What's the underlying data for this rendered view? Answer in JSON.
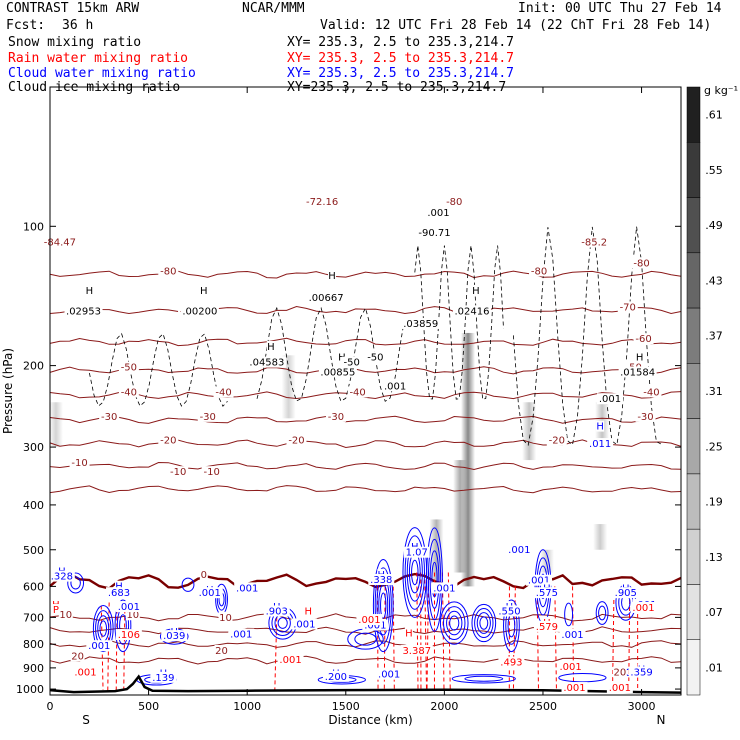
{
  "header": {
    "model": "CONTRAST 15km ARW",
    "org": "NCAR/MMM",
    "init": "Init: 00 UTC Thu 27 Feb 14",
    "fcst_label": "Fcst:",
    "fcst_value": "36 h",
    "valid": "Valid: 12 UTC Fri 28 Feb 14 (22 ChT Fri 28 Feb 14)"
  },
  "colors": {
    "temperature": "#8b1a1a",
    "freezing": "#7a0000",
    "rain": "#ff0000",
    "cloud_water": "#0000ff",
    "cloud_ice": "#000000",
    "snow_shading": "#555555"
  },
  "legend": [
    {
      "label": "Snow mixing ratio",
      "xy": "XY= 235.3,  2.5 to 235.3,214.7",
      "color": "#000000"
    },
    {
      "label": "Rain water mixing ratio",
      "xy": "XY= 235.3,  2.5 to 235.3,214.7",
      "color": "#ff0000"
    },
    {
      "label": "Cloud water mixing ratio",
      "xy": "XY= 235.3,  2.5 to 235.3,214.7",
      "color": "#0000ff"
    },
    {
      "label": "Cloud ice mixing ratio",
      "xy": "XY=235.3,  2.5 to 235.3,214.7",
      "color": "#000000"
    }
  ],
  "colorbar": {
    "unit": "g kg⁻¹",
    "labels": [
      ".61",
      ".55",
      ".49",
      ".43",
      ".37",
      ".31",
      ".25",
      ".19",
      ".13",
      ".07",
      ".01"
    ],
    "shades": [
      "#202020",
      "#3a3a3a",
      "#505050",
      "#666666",
      "#7c7c7c",
      "#929292",
      "#a8a8a8",
      "#bcbcbc",
      "#d0d0d0",
      "#e2e2e2",
      "#f2f2f2"
    ]
  },
  "chart_data": {
    "type": "cross-section",
    "xlabel": "Distance (km)",
    "ylabel": "Pressure (hPa)",
    "x_ticks": [
      0,
      500,
      1000,
      1500,
      2000,
      2500,
      3000
    ],
    "y_ticks": [
      100,
      200,
      300,
      400,
      500,
      600,
      700,
      800,
      900,
      1000
    ],
    "xlim": [
      0,
      3200
    ],
    "ylim": [
      1030,
      50
    ],
    "left_end": "S",
    "right_end": "N",
    "temperature_isotherms": [
      {
        "label": "-80",
        "p": 127
      },
      {
        "label": "-70",
        "p": 152
      },
      {
        "label": "-60",
        "p": 178
      },
      {
        "label": "-50",
        "p": 205
      },
      {
        "label": "-40",
        "p": 232
      },
      {
        "label": "-30",
        "p": 262
      },
      {
        "label": "-20",
        "p": 295
      },
      {
        "label": "-10",
        "p": 330
      },
      {
        "label": "-10",
        "p": 370
      },
      {
        "label": "0",
        "p": 585
      },
      {
        "label": "10",
        "p": 700
      },
      {
        "label": "10",
        "p": 748
      },
      {
        "label": "20",
        "p": 800
      },
      {
        "label": "20",
        "p": 866
      }
    ],
    "isotherm_labels": [
      {
        "text": "-84.47",
        "x": 50,
        "p": 110
      },
      {
        "text": "-80",
        "x": 600,
        "p": 127
      },
      {
        "text": "-72.16",
        "x": 1380,
        "p": 90
      },
      {
        "text": "-80",
        "x": 2050,
        "p": 90
      },
      {
        "text": "-85.2",
        "x": 2760,
        "p": 110
      },
      {
        "text": "-80",
        "x": 2480,
        "p": 127
      },
      {
        "text": "-80",
        "x": 3000,
        "p": 122
      },
      {
        "text": "-70",
        "x": 700,
        "p": 155
      },
      {
        "text": "-70",
        "x": 2930,
        "p": 152
      },
      {
        "text": "-60",
        "x": 3010,
        "p": 178
      },
      {
        "text": "-50",
        "x": 400,
        "p": 205
      },
      {
        "text": "-50",
        "x": 2960,
        "p": 205
      },
      {
        "text": "-40",
        "x": 400,
        "p": 232
      },
      {
        "text": "-40",
        "x": 880,
        "p": 232
      },
      {
        "text": "-40",
        "x": 1560,
        "p": 232
      },
      {
        "text": "-40",
        "x": 3050,
        "p": 232
      },
      {
        "text": "-30",
        "x": 300,
        "p": 262
      },
      {
        "text": "-30",
        "x": 800,
        "p": 262
      },
      {
        "text": "-30",
        "x": 1450,
        "p": 262
      },
      {
        "text": "-30",
        "x": 3020,
        "p": 262
      },
      {
        "text": "-20",
        "x": 600,
        "p": 295
      },
      {
        "text": "-20",
        "x": 1250,
        "p": 295
      },
      {
        "text": "-20",
        "x": 2570,
        "p": 295
      },
      {
        "text": "-10",
        "x": 150,
        "p": 330
      },
      {
        "text": "-10",
        "x": 650,
        "p": 345
      },
      {
        "text": "-10",
        "x": 820,
        "p": 345
      },
      {
        "text": "0",
        "x": 780,
        "p": 575
      },
      {
        "text": "10",
        "x": 80,
        "p": 703
      },
      {
        "text": "10",
        "x": 420,
        "p": 703
      },
      {
        "text": "10",
        "x": 890,
        "p": 712
      },
      {
        "text": "20",
        "x": 140,
        "p": 863
      },
      {
        "text": "20",
        "x": 870,
        "p": 840
      },
      {
        "text": "20",
        "x": 2890,
        "p": 935
      },
      {
        "text": "0",
        "x": 1650,
        "p": 590
      }
    ],
    "ice_labels": [
      {
        "text": "H",
        "x": 200,
        "p": 140
      },
      {
        "text": ".02953",
        "x": 170,
        "p": 155
      },
      {
        "text": "H",
        "x": 780,
        "p": 140
      },
      {
        "text": ".00200",
        "x": 760,
        "p": 155
      },
      {
        "text": "H",
        "x": 1430,
        "p": 130
      },
      {
        "text": ".00667",
        "x": 1400,
        "p": 145
      },
      {
        "text": "H",
        "x": 1920,
        "p": 165
      },
      {
        "text": ".03859",
        "x": 1880,
        "p": 165
      },
      {
        "text": "H",
        "x": 2160,
        "p": 140
      },
      {
        "text": ".02416",
        "x": 2140,
        "p": 155
      },
      {
        "text": "H",
        "x": 1120,
        "p": 185
      },
      {
        "text": ".04583",
        "x": 1100,
        "p": 200
      },
      {
        "text": "H",
        "x": 1480,
        "p": 195
      },
      {
        "text": ".00855",
        "x": 1460,
        "p": 210
      },
      {
        "text": "H",
        "x": 2990,
        "p": 195
      },
      {
        "text": ".01584",
        "x": 2980,
        "p": 210
      },
      {
        "text": ".001",
        "x": 1750,
        "p": 225
      },
      {
        "text": ".001",
        "x": 2840,
        "p": 240
      },
      {
        "text": ".001",
        "x": 1970,
        "p": 95
      },
      {
        "text": "-90.71",
        "x": 1950,
        "p": 105
      },
      {
        "text": "-50",
        "x": 1530,
        "p": 200
      },
      {
        "text": "-50",
        "x": 1650,
        "p": 195
      }
    ],
    "cloud_water_labels": [
      {
        "text": "H",
        "x": 60,
        "p": 565
      },
      {
        "text": ".328",
        "x": 60,
        "p": 580
      },
      {
        "text": "H",
        "x": 350,
        "p": 610
      },
      {
        "text": ".683",
        "x": 350,
        "p": 630
      },
      {
        "text": "H",
        "x": 810,
        "p": 620
      },
      {
        "text": ".001",
        "x": 810,
        "p": 630
      },
      {
        "text": ".001",
        "x": 1000,
        "p": 615
      },
      {
        "text": ".001",
        "x": 400,
        "p": 675
      },
      {
        "text": "H",
        "x": 1680,
        "p": 575
      },
      {
        "text": ".338",
        "x": 1680,
        "p": 590
      },
      {
        "text": "H",
        "x": 1850,
        "p": 500
      },
      {
        "text": "1.07",
        "x": 1860,
        "p": 515
      },
      {
        "text": ".001",
        "x": 2380,
        "p": 508
      },
      {
        "text": ".001",
        "x": 2000,
        "p": 615
      },
      {
        "text": ".001",
        "x": 2480,
        "p": 592
      },
      {
        "text": "H",
        "x": 2520,
        "p": 615
      },
      {
        "text": ".575",
        "x": 2520,
        "p": 630
      },
      {
        "text": "H",
        "x": 2920,
        "p": 615
      },
      {
        "text": ".905",
        "x": 2920,
        "p": 630
      },
      {
        "text": ".001",
        "x": 3020,
        "p": 668
      },
      {
        "text": "H",
        "x": 1150,
        "p": 675
      },
      {
        "text": ".903",
        "x": 1150,
        "p": 690
      },
      {
        "text": ".001",
        "x": 1290,
        "p": 736
      },
      {
        "text": "H",
        "x": 2330,
        "p": 675
      },
      {
        "text": ".550",
        "x": 2330,
        "p": 690
      },
      {
        "text": ".001",
        "x": 1650,
        "p": 740
      },
      {
        "text": ".001",
        "x": 970,
        "p": 774
      },
      {
        "text": ".001",
        "x": 2650,
        "p": 775
      },
      {
        "text": "H",
        "x": 630,
        "p": 764
      },
      {
        "text": ".039",
        "x": 630,
        "p": 780
      },
      {
        "text": ".001",
        "x": 250,
        "p": 820
      },
      {
        "text": "H",
        "x": 575,
        "p": 940
      },
      {
        "text": ".139",
        "x": 575,
        "p": 960
      },
      {
        "text": "H",
        "x": 1450,
        "p": 940
      },
      {
        "text": ".200",
        "x": 1450,
        "p": 955
      },
      {
        "text": ".001",
        "x": 1720,
        "p": 945
      },
      {
        "text": "H",
        "x": 3000,
        "p": 920
      },
      {
        "text": ".359",
        "x": 3000,
        "p": 935
      },
      {
        "text": "H",
        "x": 2790,
        "p": 275
      },
      {
        "text": ".011",
        "x": 2790,
        "p": 300
      }
    ],
    "rain_labels": [
      {
        "text": "H",
        "x": 30,
        "p": 668
      },
      {
        "text": "P",
        "x": 30,
        "p": 685
      },
      {
        "text": ".106",
        "x": 400,
        "p": 776
      },
      {
        "text": ".001",
        "x": 180,
        "p": 935
      },
      {
        "text": ".001",
        "x": 1220,
        "p": 878
      },
      {
        "text": "H",
        "x": 1310,
        "p": 690
      },
      {
        "text": ".001",
        "x": 1620,
        "p": 720
      },
      {
        "text": "H",
        "x": 1820,
        "p": 770
      },
      {
        "text": "3.387",
        "x": 1860,
        "p": 840
      },
      {
        "text": "H",
        "x": 2340,
        "p": 875
      },
      {
        "text": ".493",
        "x": 2340,
        "p": 890
      },
      {
        "text": ".001",
        "x": 2640,
        "p": 910
      },
      {
        "text": "H",
        "x": 2520,
        "p": 730
      },
      {
        "text": ".579",
        "x": 2520,
        "p": 745
      },
      {
        "text": ".001",
        "x": 2660,
        "p": 1010
      },
      {
        "text": ".001",
        "x": 2890,
        "p": 1010
      },
      {
        "text": ".001",
        "x": 3010,
        "p": 678
      }
    ],
    "terrain": [
      [
        0,
        1005
      ],
      [
        60,
        1010
      ],
      [
        120,
        1015
      ],
      [
        250,
        1012
      ],
      [
        330,
        1010
      ],
      [
        390,
        1000
      ],
      [
        420,
        975
      ],
      [
        450,
        940
      ],
      [
        480,
        990
      ],
      [
        520,
        1008
      ],
      [
        700,
        1010
      ],
      [
        1000,
        1008
      ],
      [
        1500,
        1005
      ],
      [
        2000,
        1003
      ],
      [
        2500,
        1006
      ],
      [
        3000,
        1015
      ],
      [
        3200,
        1018
      ]
    ],
    "snow_columns": [
      {
        "x": 2120,
        "p_top": 170,
        "p_bottom": 600,
        "shade": 0.7
      },
      {
        "x": 2080,
        "p_top": 320,
        "p_bottom": 560,
        "shade": 0.5
      },
      {
        "x": 1960,
        "p_top": 430,
        "p_bottom": 600,
        "shade": 0.45
      },
      {
        "x": 2430,
        "p_top": 240,
        "p_bottom": 320,
        "shade": 0.35
      },
      {
        "x": 2800,
        "p_top": 240,
        "p_bottom": 300,
        "shade": 0.35
      },
      {
        "x": 1210,
        "p_top": 190,
        "p_bottom": 260,
        "shade": 0.25
      },
      {
        "x": 30,
        "p_top": 240,
        "p_bottom": 300,
        "shade": 0.25
      },
      {
        "x": 2790,
        "p_top": 440,
        "p_bottom": 500,
        "shade": 0.3
      },
      {
        "x": 2520,
        "p_top": 500,
        "p_bottom": 560,
        "shade": 0.3
      }
    ],
    "rain_columns": [
      {
        "x": 260,
        "p_top": 660,
        "p_bottom": 1005
      },
      {
        "x": 300,
        "p_top": 650,
        "p_bottom": 1010
      },
      {
        "x": 340,
        "p_top": 650,
        "p_bottom": 1010
      },
      {
        "x": 380,
        "p_top": 650,
        "p_bottom": 1005
      },
      {
        "x": 1150,
        "p_top": 700,
        "p_bottom": 1010
      },
      {
        "x": 1660,
        "p_top": 580,
        "p_bottom": 1000
      },
      {
        "x": 1700,
        "p_top": 580,
        "p_bottom": 1000
      },
      {
        "x": 1740,
        "p_top": 580,
        "p_bottom": 1000
      },
      {
        "x": 1860,
        "p_top": 560,
        "p_bottom": 1000
      },
      {
        "x": 1880,
        "p_top": 560,
        "p_bottom": 1000
      },
      {
        "x": 1900,
        "p_top": 560,
        "p_bottom": 1000
      },
      {
        "x": 1920,
        "p_top": 560,
        "p_bottom": 1000
      },
      {
        "x": 1950,
        "p_top": 560,
        "p_bottom": 1000
      },
      {
        "x": 1990,
        "p_top": 560,
        "p_bottom": 1000
      },
      {
        "x": 2020,
        "p_top": 560,
        "p_bottom": 1000
      },
      {
        "x": 2330,
        "p_top": 600,
        "p_bottom": 1000
      },
      {
        "x": 2360,
        "p_top": 600,
        "p_bottom": 1000
      },
      {
        "x": 2470,
        "p_top": 600,
        "p_bottom": 1000
      },
      {
        "x": 2560,
        "p_top": 600,
        "p_bottom": 1000
      },
      {
        "x": 2650,
        "p_top": 600,
        "p_bottom": 1000
      },
      {
        "x": 2860,
        "p_top": 620,
        "p_bottom": 1010
      },
      {
        "x": 2940,
        "p_top": 620,
        "p_bottom": 1010
      },
      {
        "x": 2980,
        "p_top": 620,
        "p_bottom": 1010
      }
    ],
    "cloud_clusters": [
      {
        "x": 270,
        "p": 740,
        "rx": 50,
        "rp": 90,
        "rings": 4
      },
      {
        "x": 370,
        "p": 730,
        "rx": 40,
        "rp": 100,
        "rings": 3
      },
      {
        "x": 870,
        "p": 640,
        "rx": 30,
        "rp": 50,
        "rings": 3
      },
      {
        "x": 1180,
        "p": 720,
        "rx": 70,
        "rp": 60,
        "rings": 4
      },
      {
        "x": 1690,
        "p": 660,
        "rx": 50,
        "rp": 170,
        "rings": 5
      },
      {
        "x": 1850,
        "p": 560,
        "rx": 60,
        "rp": 140,
        "rings": 5
      },
      {
        "x": 1950,
        "p": 580,
        "rx": 40,
        "rp": 170,
        "rings": 4
      },
      {
        "x": 2050,
        "p": 720,
        "rx": 70,
        "rp": 80,
        "rings": 4
      },
      {
        "x": 2200,
        "p": 720,
        "rx": 60,
        "rp": 70,
        "rings": 4
      },
      {
        "x": 2340,
        "p": 730,
        "rx": 40,
        "rp": 100,
        "rings": 3
      },
      {
        "x": 2500,
        "p": 600,
        "rx": 40,
        "rp": 120,
        "rings": 4
      },
      {
        "x": 2920,
        "p": 650,
        "rx": 50,
        "rp": 60,
        "rings": 3
      },
      {
        "x": 1600,
        "p": 780,
        "rx": 90,
        "rp": 40,
        "rings": 2
      },
      {
        "x": 1480,
        "p": 955,
        "rx": 120,
        "rp": 20,
        "rings": 2
      },
      {
        "x": 2200,
        "p": 950,
        "rx": 160,
        "rp": 20,
        "rings": 2
      },
      {
        "x": 2700,
        "p": 945,
        "rx": 120,
        "rp": 20,
        "rings": 1
      },
      {
        "x": 630,
        "p": 770,
        "rx": 70,
        "rp": 30,
        "rings": 2
      },
      {
        "x": 540,
        "p": 955,
        "rx": 100,
        "rp": 25,
        "rings": 2
      },
      {
        "x": 700,
        "p": 595,
        "rx": 30,
        "rp": 20,
        "rings": 1
      },
      {
        "x": 130,
        "p": 590,
        "rx": 40,
        "rp": 30,
        "rings": 2
      },
      {
        "x": 2980,
        "p": 920,
        "rx": 70,
        "rp": 20,
        "rings": 1
      },
      {
        "x": 2800,
        "p": 685,
        "rx": 30,
        "rp": 40,
        "rings": 2
      },
      {
        "x": 2630,
        "p": 690,
        "rx": 20,
        "rp": 40,
        "rings": 1
      }
    ]
  }
}
